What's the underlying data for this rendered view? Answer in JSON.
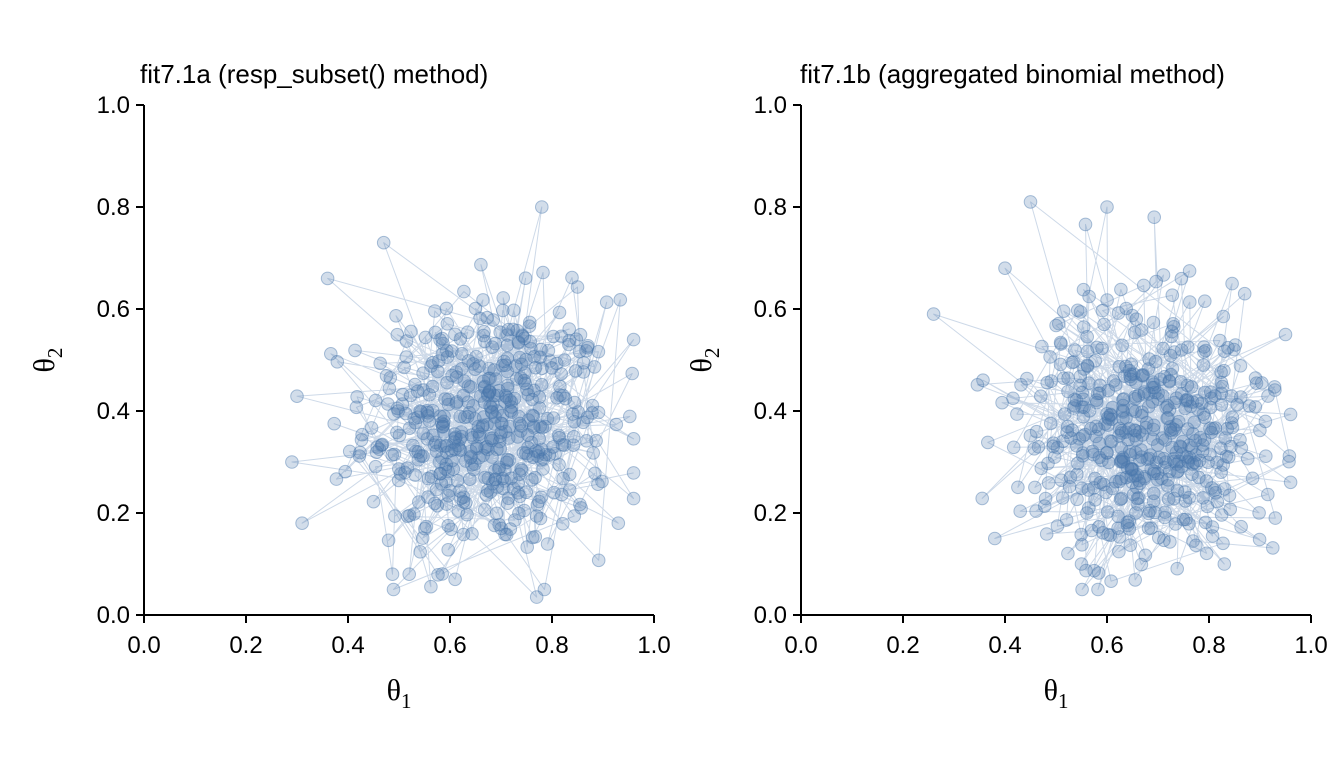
{
  "chart_data": [
    {
      "type": "scatter",
      "title": "fit7.1a (resp_subset() method)",
      "xlabel": "θ",
      "xlabel_sub": "1",
      "ylabel": "θ",
      "ylabel_sub": "2",
      "xlim": [
        0.0,
        1.0
      ],
      "ylim": [
        0.0,
        1.0
      ],
      "xticks": [
        "0.0",
        "0.2",
        "0.4",
        "0.6",
        "0.8",
        "1.0"
      ],
      "yticks": [
        "0.0",
        "0.2",
        "0.4",
        "0.6",
        "0.8",
        "1.0"
      ],
      "grid": false,
      "connected_draws": true,
      "n_draws": 500,
      "centroid": [
        0.675,
        0.37
      ],
      "sd": [
        0.12,
        0.125
      ],
      "notable_points": [
        [
          0.78,
          0.8
        ],
        [
          0.29,
          0.3
        ],
        [
          0.96,
          0.54
        ],
        [
          0.36,
          0.66
        ],
        [
          0.31,
          0.18
        ],
        [
          0.77,
          0.035
        ],
        [
          0.52,
          0.08
        ],
        [
          0.47,
          0.73
        ],
        [
          0.61,
          0.07
        ],
        [
          0.93,
          0.18
        ]
      ],
      "color": "#4a78ad"
    },
    {
      "type": "scatter",
      "title": "fit7.1b (aggregated binomial method)",
      "xlabel": "θ",
      "xlabel_sub": "1",
      "ylabel": "θ",
      "ylabel_sub": "2",
      "xlim": [
        0.0,
        1.0
      ],
      "ylim": [
        0.0,
        1.0
      ],
      "xticks": [
        "0.0",
        "0.2",
        "0.4",
        "0.6",
        "0.8",
        "1.0"
      ],
      "yticks": [
        "0.0",
        "0.2",
        "0.4",
        "0.6",
        "0.8",
        "1.0"
      ],
      "grid": false,
      "connected_draws": true,
      "n_draws": 500,
      "centroid": [
        0.675,
        0.36
      ],
      "sd": [
        0.12,
        0.125
      ],
      "notable_points": [
        [
          0.26,
          0.59
        ],
        [
          0.45,
          0.81
        ],
        [
          0.6,
          0.8
        ],
        [
          0.4,
          0.68
        ],
        [
          0.95,
          0.55
        ],
        [
          0.93,
          0.19
        ],
        [
          0.38,
          0.15
        ],
        [
          0.83,
          0.1
        ],
        [
          0.55,
          0.1
        ],
        [
          0.87,
          0.63
        ]
      ],
      "color": "#4a78ad"
    }
  ]
}
